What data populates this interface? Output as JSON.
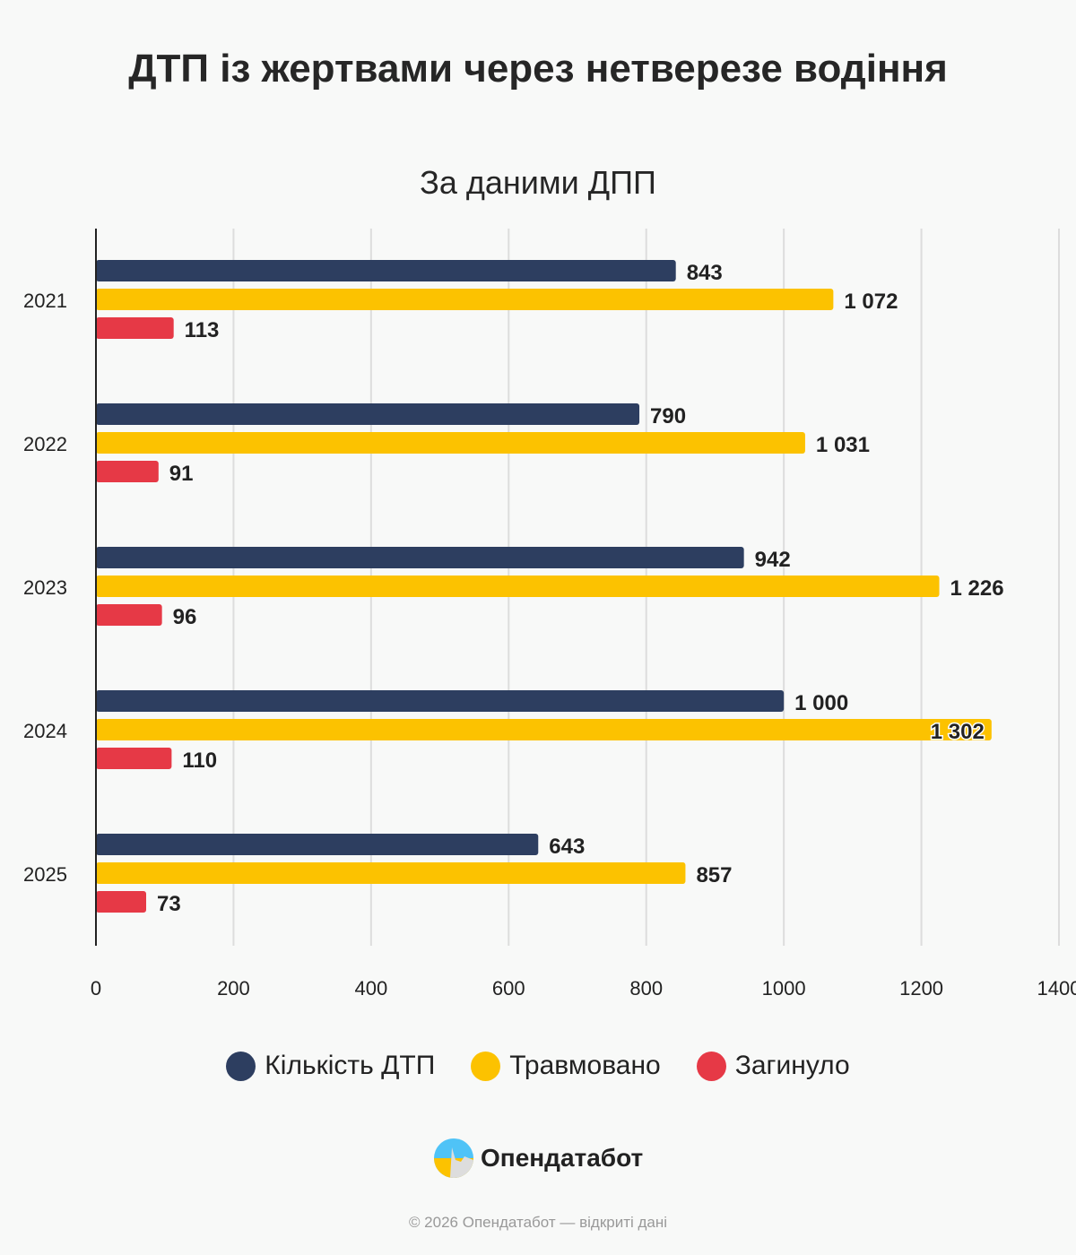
{
  "chart_data": {
    "type": "bar",
    "orientation": "horizontal",
    "title": "ДТП із жертвами через нетверезе водіння",
    "subtitle": "За даними ДПП",
    "categories": [
      "2021",
      "2022",
      "2023",
      "2024",
      "2025"
    ],
    "series": [
      {
        "name": "Кількість ДТП",
        "color": "#2d3e60",
        "values": [
          843,
          790,
          942,
          1000,
          643
        ],
        "labels": [
          "843",
          "790",
          "942",
          "1 000",
          "643"
        ]
      },
      {
        "name": "Травмовано",
        "color": "#fcc200",
        "values": [
          1072,
          1031,
          1226,
          1302,
          857
        ],
        "labels": [
          "1 072",
          "1 031",
          "1 226",
          "1 302",
          "857"
        ]
      },
      {
        "name": "Загинуло",
        "color": "#e63946",
        "values": [
          113,
          91,
          96,
          110,
          73
        ],
        "labels": [
          "113",
          "91",
          "96",
          "110",
          "73"
        ]
      }
    ],
    "xlim": [
      0,
      1400
    ],
    "xticks": [
      "0",
      "200",
      "400",
      "600",
      "800",
      "1000",
      "1200",
      "1400"
    ],
    "grid": true,
    "legend": "bottom"
  },
  "brand": {
    "name": "Опендатабот"
  },
  "footer": "© 2026 Опендатабот — відкриті дані"
}
